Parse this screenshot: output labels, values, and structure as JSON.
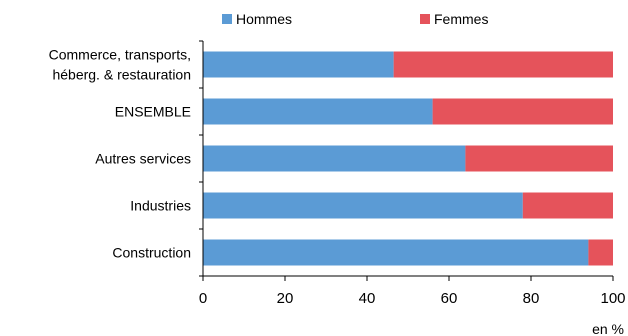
{
  "chart_data": {
    "type": "bar",
    "orientation": "horizontal",
    "stacked": true,
    "categories": [
      "Commerce, transports,\nhéberg. & restauration",
      "ENSEMBLE",
      "Autres services",
      "Industries",
      "Construction"
    ],
    "series": [
      {
        "name": "Hommes",
        "color": "#5b9bd5",
        "values": [
          46.5,
          56,
          64,
          78,
          94
        ]
      },
      {
        "name": "Femmes",
        "color": "#e5535b",
        "values": [
          53.5,
          44,
          36,
          22,
          6
        ]
      }
    ],
    "xlim": [
      0,
      100
    ],
    "xticks": [
      "0",
      "20",
      "40",
      "60",
      "80",
      "100"
    ],
    "unit_label": "en %",
    "legend_position": "top",
    "grid": false
  }
}
